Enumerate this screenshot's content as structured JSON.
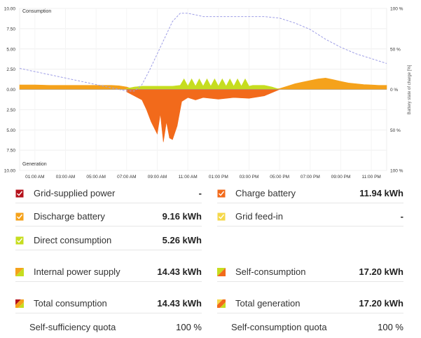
{
  "chart": {
    "top_label": "Consumption",
    "bottom_label": "Generation",
    "right_axis_title": "Battery state of charge [%]",
    "left_ticks": [
      "10.00",
      "7.50",
      "5.00",
      "2.50",
      "0.00",
      "2.50",
      "5.00",
      "7.50",
      "10.00"
    ],
    "right_ticks": [
      "100 %",
      "50 %",
      "0 %",
      "50 %",
      "100 %"
    ],
    "x_ticks": [
      "01:00 AM",
      "03:00 AM",
      "05:00 AM",
      "07:00 AM",
      "09:00 AM",
      "11:00 AM",
      "01:00 PM",
      "03:00 PM",
      "05:00 PM",
      "07:00 PM",
      "09:00 PM",
      "11:00 PM"
    ],
    "colors": {
      "grid_supplied": "#b5121b",
      "charge_battery": "#f26a1b",
      "discharge_battery": "#f5a21b",
      "grid_feed_in": "#f5d84a",
      "direct_consumption": "#c6dd1f",
      "soc_line": "#9e9ee6"
    }
  },
  "chart_data": {
    "type": "area",
    "x_unit": "hour",
    "y_unit": "kW",
    "ylim": [
      -10,
      10
    ],
    "y2lim": [
      0,
      100
    ],
    "xlim": [
      0,
      24
    ],
    "series": [
      {
        "name": "Discharge battery",
        "x": [
          0,
          1,
          2,
          3,
          4,
          5,
          6,
          6.5,
          7,
          7.3,
          7.6,
          8,
          16.5,
          17,
          17.5,
          18,
          18.5,
          19,
          19.5,
          20,
          20.5,
          21,
          21.5,
          22,
          22.5,
          23,
          23.5,
          24
        ],
        "values": [
          0.55,
          0.55,
          0.5,
          0.5,
          0.5,
          0.5,
          0.5,
          0.45,
          0.3,
          0.1,
          0,
          0,
          0,
          0.1,
          0.4,
          0.7,
          0.9,
          1.1,
          1.3,
          1.4,
          1.2,
          1.0,
          0.8,
          0.7,
          0.6,
          0.55,
          0.5,
          0.5
        ]
      },
      {
        "name": "Direct consumption",
        "x": [
          7,
          7.5,
          8,
          8.5,
          9,
          9.5,
          10,
          10.5,
          10.75,
          11,
          11.25,
          11.5,
          11.75,
          12,
          12.25,
          12.5,
          12.75,
          13,
          13.25,
          13.5,
          13.75,
          14,
          14.25,
          14.5,
          14.75,
          15,
          15.25,
          15.5,
          15.75,
          16,
          16.5,
          17
        ],
        "values": [
          0.1,
          0.3,
          0.4,
          0.4,
          0.4,
          0.4,
          0.4,
          0.5,
          1.3,
          0.4,
          1.3,
          0.4,
          1.3,
          0.4,
          1.3,
          0.4,
          1.3,
          0.4,
          1.3,
          0.4,
          1.3,
          0.4,
          1.3,
          0.4,
          1.3,
          0.4,
          0.5,
          0.5,
          0.5,
          0.5,
          0.3,
          0
        ]
      },
      {
        "name": "Charge battery",
        "x": [
          7,
          7.5,
          8,
          8.3,
          8.6,
          9,
          9.2,
          9.4,
          9.6,
          9.8,
          10,
          10.3,
          10.6,
          11,
          11.5,
          12,
          13,
          14,
          15,
          16,
          16.5,
          17
        ],
        "values": [
          -0.3,
          -0.8,
          -1.3,
          -2.5,
          -4.0,
          -5.5,
          -3.0,
          -6.5,
          -4.0,
          -6.0,
          -6.2,
          -4.5,
          -1.5,
          -1.0,
          -1.3,
          -1.0,
          -1.2,
          -1.0,
          -1.1,
          -0.8,
          -0.4,
          0
        ]
      },
      {
        "name": "Battery state of charge",
        "axis": "right",
        "x": [
          0,
          1,
          2,
          3,
          4,
          5,
          6,
          7,
          7.5,
          8,
          8.5,
          9,
          9.5,
          10,
          10.5,
          11,
          11.5,
          12,
          13,
          14,
          15,
          16,
          17,
          18,
          19,
          20,
          21,
          22,
          23,
          24
        ],
        "values": [
          63,
          61,
          59,
          57,
          55,
          53,
          51,
          49,
          49,
          53,
          62,
          72,
          82,
          92,
          97,
          97,
          96,
          95,
          95,
          95,
          95,
          95,
          94,
          91,
          87,
          81,
          76,
          72,
          69,
          66
        ]
      }
    ]
  },
  "legend": {
    "left": [
      {
        "label": "Grid-supplied power",
        "value": "-",
        "color": "#b5121b",
        "kind": "check"
      },
      {
        "label": "Discharge battery",
        "value": "9.16 kWh",
        "color": "#f5a21b",
        "kind": "check"
      },
      {
        "label": "Direct consumption",
        "value": "5.26 kWh",
        "color": "#c6dd1f",
        "kind": "check"
      },
      {
        "label": "Internal power supply",
        "value": "14.43 kWh",
        "colors": [
          "#f5a21b",
          "#c6dd1f"
        ],
        "kind": "split"
      },
      {
        "label": "Total consumption",
        "value": "14.43 kWh",
        "colors": [
          "#b5121b",
          "#f5a21b",
          "#c6dd1f"
        ],
        "kind": "split3"
      },
      {
        "label": "Self-sufficiency quota",
        "value": "100 %",
        "kind": "none"
      }
    ],
    "right": [
      {
        "label": "Charge battery",
        "value": "11.94 kWh",
        "color": "#f26a1b",
        "kind": "check"
      },
      {
        "label": "Grid feed-in",
        "value": "-",
        "color": "#f5d84a",
        "kind": "check"
      },
      {
        "label": "Self-consumption",
        "value": "17.20 kWh",
        "colors": [
          "#c6dd1f",
          "#f26a1b"
        ],
        "kind": "split"
      },
      {
        "label": "Total generation",
        "value": "17.20 kWh",
        "colors": [
          "#f5d84a",
          "#f26a1b",
          "#c6dd1f"
        ],
        "kind": "split3"
      },
      {
        "label": "Self-consumption quota",
        "value": "100 %",
        "kind": "none"
      }
    ]
  }
}
